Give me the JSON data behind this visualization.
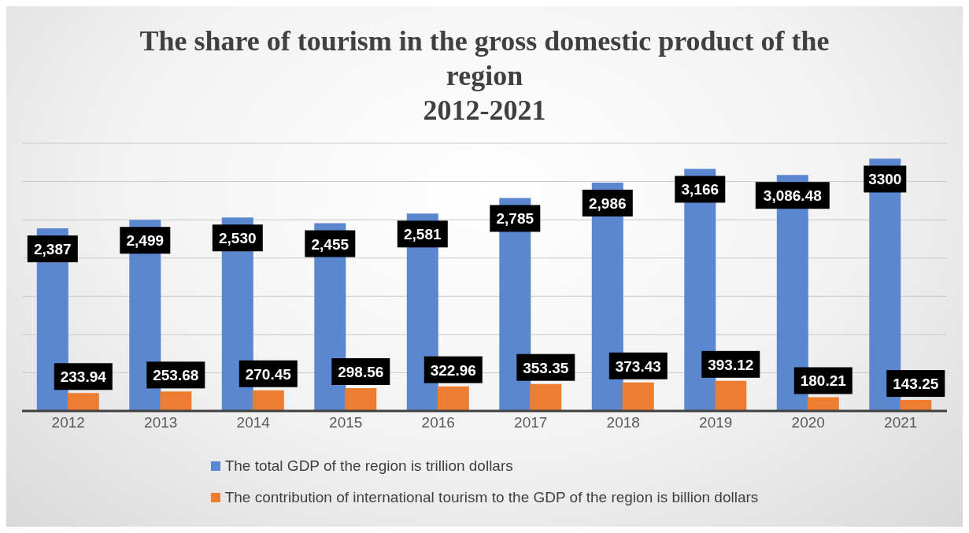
{
  "chart_data": {
    "type": "bar",
    "title": "The share of tourism in the gross domestic product of the region\n2012-2021",
    "categories": [
      "2012",
      "2013",
      "2014",
      "2015",
      "2016",
      "2017",
      "2018",
      "2019",
      "2020",
      "2021"
    ],
    "series": [
      {
        "name": "The total GDP of the region is trillion dollars",
        "color": "#5b87d1",
        "values": [
          2387,
          2499,
          2530,
          2455,
          2581,
          2785,
          2986,
          3166,
          3086.48,
          3300
        ],
        "value_labels": [
          "2,387",
          "2,499",
          "2,530",
          "2,455",
          "2,581",
          "2,785",
          "2,986",
          "3,166",
          "3,086.48",
          "3300"
        ]
      },
      {
        "name": "The contribution of international tourism to the GDP of the region is billion dollars",
        "color": "#ed7d31",
        "values": [
          233.94,
          253.68,
          270.45,
          298.56,
          322.96,
          353.35,
          373.43,
          393.12,
          180.21,
          143.25
        ],
        "value_labels": [
          "233.94",
          "253.68",
          "270.45",
          "298.56",
          "322.96",
          "353.35",
          "373.43",
          "393.12",
          "180.21",
          "143.25"
        ]
      }
    ],
    "tick_labels": "x",
    "grid": "y",
    "legend": "bottom"
  }
}
